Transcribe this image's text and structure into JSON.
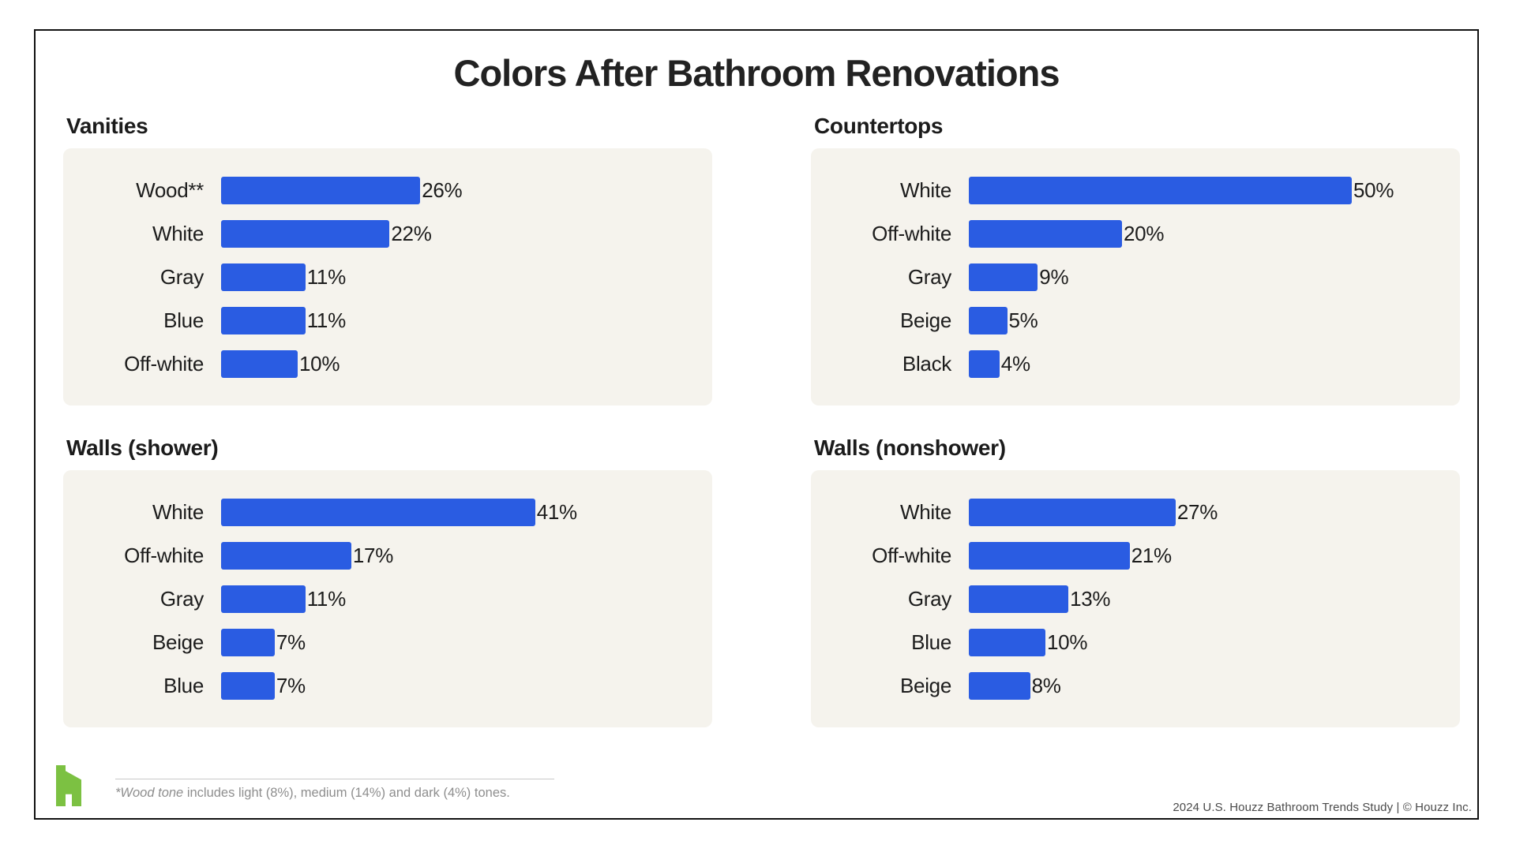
{
  "title": "Colors After Bathroom Renovations",
  "colors": {
    "bar": "#2A5CE2",
    "panel_bg": "#F5F3ED",
    "frame_border": "#121212",
    "houzz_green": "#7CC142",
    "footnote_gray": "#8E8E8E"
  },
  "chart_data": [
    {
      "type": "bar",
      "orientation": "horizontal",
      "title": "Vanities",
      "categories": [
        "Wood**",
        "White",
        "Gray",
        "Blue",
        "Off-white"
      ],
      "values": [
        26,
        22,
        11,
        11,
        10
      ],
      "value_suffix": "%",
      "xlim": [
        0,
        60
      ],
      "grid": false,
      "legend": false
    },
    {
      "type": "bar",
      "orientation": "horizontal",
      "title": "Countertops",
      "categories": [
        "White",
        "Off-white",
        "Gray",
        "Beige",
        "Black"
      ],
      "values": [
        50,
        20,
        9,
        5,
        4
      ],
      "value_suffix": "%",
      "xlim": [
        0,
        60
      ],
      "grid": false,
      "legend": false
    },
    {
      "type": "bar",
      "orientation": "horizontal",
      "title": "Walls (shower)",
      "categories": [
        "White",
        "Off-white",
        "Gray",
        "Beige",
        "Blue"
      ],
      "values": [
        41,
        17,
        11,
        7,
        7
      ],
      "value_suffix": "%",
      "xlim": [
        0,
        60
      ],
      "grid": false,
      "legend": false
    },
    {
      "type": "bar",
      "orientation": "horizontal",
      "title": "Walls (nonshower)",
      "categories": [
        "White",
        "Off-white",
        "Gray",
        "Blue",
        "Beige"
      ],
      "values": [
        27,
        21,
        13,
        10,
        8
      ],
      "value_suffix": "%",
      "xlim": [
        0,
        60
      ],
      "grid": false,
      "legend": false
    }
  ],
  "footnote": {
    "italic_part": "*Wood tone",
    "rest": " includes light (8%), medium (14%) and dark (4%) tones."
  },
  "footer": {
    "attribution": "2024 U.S. Houzz Bathroom Trends Study  |  © Houzz Inc.",
    "logo": "houzz-logo"
  }
}
